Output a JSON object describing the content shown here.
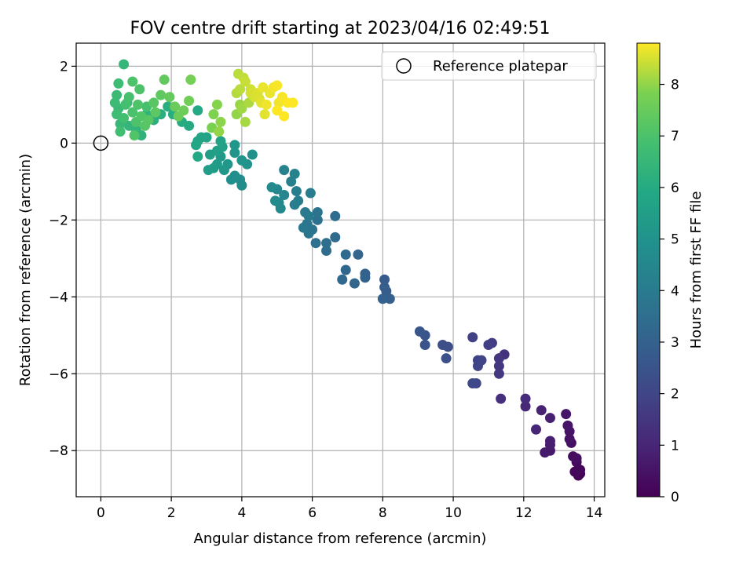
{
  "chart_data": {
    "type": "scatter",
    "title": "FOV centre drift starting at 2023/04/16 02:49:51",
    "xlabel": "Angular distance from reference (arcmin)",
    "ylabel": "Rotation from reference (arcmin)",
    "xlim": [
      -0.7,
      14.3
    ],
    "ylim": [
      -9.2,
      2.6
    ],
    "xticks": [
      0,
      2,
      4,
      6,
      8,
      10,
      12,
      14
    ],
    "yticks": [
      2,
      0,
      -2,
      -4,
      -6,
      -8
    ],
    "grid": true,
    "legend": {
      "position": "top-right",
      "entries": [
        "Reference platepar"
      ]
    },
    "reference": {
      "x": 0,
      "y": 0,
      "label": "Reference platepar"
    },
    "colorbar": {
      "label": "Hours from first FF file",
      "min": 0,
      "max": 8.8,
      "ticks": [
        0,
        1,
        2,
        3,
        4,
        5,
        6,
        7,
        8
      ],
      "colormap": "viridis"
    },
    "points": [
      {
        "x": 13.6,
        "y": -8.6,
        "h": 0.05
      },
      {
        "x": 13.55,
        "y": -8.65,
        "h": 0.1
      },
      {
        "x": 13.45,
        "y": -8.55,
        "h": 0.15
      },
      {
        "x": 13.6,
        "y": -8.5,
        "h": 0.2
      },
      {
        "x": 13.5,
        "y": -8.3,
        "h": 0.25
      },
      {
        "x": 13.4,
        "y": -8.15,
        "h": 0.3
      },
      {
        "x": 13.5,
        "y": -8.2,
        "h": 0.35
      },
      {
        "x": 13.35,
        "y": -7.8,
        "h": 0.4
      },
      {
        "x": 13.3,
        "y": -7.7,
        "h": 0.45
      },
      {
        "x": 13.3,
        "y": -7.5,
        "h": 0.5
      },
      {
        "x": 13.25,
        "y": -7.35,
        "h": 0.55
      },
      {
        "x": 13.2,
        "y": -7.05,
        "h": 0.6
      },
      {
        "x": 12.75,
        "y": -8.0,
        "h": 0.65
      },
      {
        "x": 12.6,
        "y": -8.05,
        "h": 0.7
      },
      {
        "x": 12.75,
        "y": -7.85,
        "h": 0.75
      },
      {
        "x": 12.75,
        "y": -7.75,
        "h": 0.8
      },
      {
        "x": 12.75,
        "y": -7.15,
        "h": 0.85
      },
      {
        "x": 12.5,
        "y": -6.95,
        "h": 0.9
      },
      {
        "x": 12.35,
        "y": -7.45,
        "h": 1.0
      },
      {
        "x": 12.05,
        "y": -6.85,
        "h": 1.1
      },
      {
        "x": 12.05,
        "y": -6.65,
        "h": 1.2
      },
      {
        "x": 11.35,
        "y": -6.65,
        "h": 1.3
      },
      {
        "x": 11.45,
        "y": -5.5,
        "h": 1.4
      },
      {
        "x": 11.3,
        "y": -5.6,
        "h": 1.5
      },
      {
        "x": 11.3,
        "y": -5.8,
        "h": 1.55
      },
      {
        "x": 11.3,
        "y": -6.0,
        "h": 1.6
      },
      {
        "x": 11.1,
        "y": -5.2,
        "h": 1.7
      },
      {
        "x": 11.0,
        "y": -5.25,
        "h": 1.8
      },
      {
        "x": 10.55,
        "y": -5.05,
        "h": 1.85
      },
      {
        "x": 10.7,
        "y": -5.65,
        "h": 1.9
      },
      {
        "x": 10.8,
        "y": -5.65,
        "h": 1.95
      },
      {
        "x": 10.7,
        "y": -5.8,
        "h": 2.0
      },
      {
        "x": 10.65,
        "y": -6.25,
        "h": 2.05
      },
      {
        "x": 10.55,
        "y": -6.25,
        "h": 2.1
      },
      {
        "x": 9.85,
        "y": -5.3,
        "h": 2.3
      },
      {
        "x": 9.7,
        "y": -5.25,
        "h": 2.35
      },
      {
        "x": 9.8,
        "y": -5.6,
        "h": 2.4
      },
      {
        "x": 9.2,
        "y": -5.25,
        "h": 2.5
      },
      {
        "x": 9.2,
        "y": -5.0,
        "h": 2.55
      },
      {
        "x": 9.05,
        "y": -4.9,
        "h": 2.6
      },
      {
        "x": 8.05,
        "y": -3.55,
        "h": 2.8
      },
      {
        "x": 8.1,
        "y": -3.85,
        "h": 2.85
      },
      {
        "x": 8.05,
        "y": -3.75,
        "h": 2.9
      },
      {
        "x": 8.2,
        "y": -4.05,
        "h": 2.95
      },
      {
        "x": 8.0,
        "y": -4.05,
        "h": 3.0
      },
      {
        "x": 7.5,
        "y": -3.4,
        "h": 3.05
      },
      {
        "x": 7.5,
        "y": -3.5,
        "h": 3.1
      },
      {
        "x": 7.3,
        "y": -2.9,
        "h": 3.15
      },
      {
        "x": 7.2,
        "y": -3.65,
        "h": 3.2
      },
      {
        "x": 6.95,
        "y": -3.3,
        "h": 3.25
      },
      {
        "x": 6.85,
        "y": -3.55,
        "h": 3.3
      },
      {
        "x": 6.95,
        "y": -2.9,
        "h": 3.35
      },
      {
        "x": 6.65,
        "y": -2.45,
        "h": 3.4
      },
      {
        "x": 6.65,
        "y": -1.9,
        "h": 3.45
      },
      {
        "x": 6.4,
        "y": -2.8,
        "h": 3.5
      },
      {
        "x": 6.4,
        "y": -2.6,
        "h": 3.55
      },
      {
        "x": 6.1,
        "y": -2.6,
        "h": 3.6
      },
      {
        "x": 6.15,
        "y": -2.0,
        "h": 3.65
      },
      {
        "x": 6.15,
        "y": -1.8,
        "h": 3.7
      },
      {
        "x": 6.0,
        "y": -2.25,
        "h": 3.75
      },
      {
        "x": 5.9,
        "y": -2.35,
        "h": 3.8
      },
      {
        "x": 5.85,
        "y": -2.1,
        "h": 3.85
      },
      {
        "x": 5.75,
        "y": -2.2,
        "h": 3.9
      },
      {
        "x": 5.8,
        "y": -1.8,
        "h": 3.95
      },
      {
        "x": 5.9,
        "y": -1.9,
        "h": 4.0
      },
      {
        "x": 5.95,
        "y": -1.3,
        "h": 4.05
      },
      {
        "x": 5.6,
        "y": -1.5,
        "h": 4.1
      },
      {
        "x": 5.5,
        "y": -1.6,
        "h": 4.15
      },
      {
        "x": 5.55,
        "y": -1.25,
        "h": 4.2
      },
      {
        "x": 5.4,
        "y": -1.0,
        "h": 4.25
      },
      {
        "x": 5.5,
        "y": -0.8,
        "h": 4.3
      },
      {
        "x": 5.2,
        "y": -0.7,
        "h": 4.35
      },
      {
        "x": 5.2,
        "y": -1.35,
        "h": 4.4
      },
      {
        "x": 5.0,
        "y": -1.2,
        "h": 4.45
      },
      {
        "x": 5.05,
        "y": -1.55,
        "h": 4.5
      },
      {
        "x": 5.1,
        "y": -1.7,
        "h": 4.55
      },
      {
        "x": 4.95,
        "y": -1.5,
        "h": 4.6
      },
      {
        "x": 4.85,
        "y": -1.15,
        "h": 4.65
      },
      {
        "x": 4.0,
        "y": -1.1,
        "h": 4.7
      },
      {
        "x": 3.95,
        "y": -0.95,
        "h": 4.75
      },
      {
        "x": 3.8,
        "y": -0.85,
        "h": 4.8
      },
      {
        "x": 3.7,
        "y": -0.95,
        "h": 4.85
      },
      {
        "x": 4.3,
        "y": -0.3,
        "h": 4.9
      },
      {
        "x": 4.15,
        "y": -0.55,
        "h": 4.95
      },
      {
        "x": 4.0,
        "y": -0.45,
        "h": 5.0
      },
      {
        "x": 3.8,
        "y": -0.25,
        "h": 5.05
      },
      {
        "x": 3.8,
        "y": -0.05,
        "h": 5.1
      },
      {
        "x": 3.6,
        "y": -0.55,
        "h": 5.15
      },
      {
        "x": 3.5,
        "y": -0.7,
        "h": 5.2
      },
      {
        "x": 3.4,
        "y": -0.35,
        "h": 5.25
      },
      {
        "x": 3.3,
        "y": -0.55,
        "h": 5.3
      },
      {
        "x": 3.2,
        "y": -0.65,
        "h": 5.35
      },
      {
        "x": 3.05,
        "y": -0.7,
        "h": 5.4
      },
      {
        "x": 3.1,
        "y": -0.3,
        "h": 5.45
      },
      {
        "x": 3.3,
        "y": -0.2,
        "h": 5.5
      },
      {
        "x": 3.45,
        "y": -0.1,
        "h": 5.55
      },
      {
        "x": 3.4,
        "y": 0.05,
        "h": 5.6
      },
      {
        "x": 3.0,
        "y": 0.15,
        "h": 5.65
      },
      {
        "x": 2.85,
        "y": 0.15,
        "h": 5.7
      },
      {
        "x": 2.75,
        "y": 0.05,
        "h": 5.75
      },
      {
        "x": 2.7,
        "y": -0.05,
        "h": 5.8
      },
      {
        "x": 2.75,
        "y": -0.35,
        "h": 5.85
      },
      {
        "x": 2.75,
        "y": 0.85,
        "h": 5.9
      },
      {
        "x": 2.5,
        "y": 0.45,
        "h": 5.95
      },
      {
        "x": 2.3,
        "y": 0.55,
        "h": 6.0
      },
      {
        "x": 2.05,
        "y": 0.75,
        "h": 6.05
      },
      {
        "x": 1.9,
        "y": 0.95,
        "h": 6.1
      },
      {
        "x": 1.7,
        "y": 0.75,
        "h": 6.15
      },
      {
        "x": 1.5,
        "y": 0.6,
        "h": 6.2
      },
      {
        "x": 1.3,
        "y": 0.75,
        "h": 6.25
      },
      {
        "x": 1.15,
        "y": 0.2,
        "h": 6.3
      },
      {
        "x": 1.0,
        "y": 0.35,
        "h": 6.35
      },
      {
        "x": 0.8,
        "y": 0.45,
        "h": 6.4
      },
      {
        "x": 0.65,
        "y": 2.05,
        "h": 6.45
      },
      {
        "x": 0.55,
        "y": 0.5,
        "h": 6.5
      },
      {
        "x": 0.5,
        "y": 0.9,
        "h": 6.55
      },
      {
        "x": 0.45,
        "y": 1.25,
        "h": 6.6
      },
      {
        "x": 0.4,
        "y": 1.05,
        "h": 6.65
      },
      {
        "x": 0.45,
        "y": 0.75,
        "h": 6.7
      },
      {
        "x": 0.55,
        "y": 0.3,
        "h": 6.75
      },
      {
        "x": 0.65,
        "y": 0.65,
        "h": 6.8
      },
      {
        "x": 0.7,
        "y": 1.0,
        "h": 6.85
      },
      {
        "x": 0.8,
        "y": 1.2,
        "h": 6.9
      },
      {
        "x": 0.9,
        "y": 0.8,
        "h": 6.95
      },
      {
        "x": 1.0,
        "y": 0.55,
        "h": 7.0
      },
      {
        "x": 1.05,
        "y": 1.0,
        "h": 7.05
      },
      {
        "x": 1.15,
        "y": 0.7,
        "h": 7.1
      },
      {
        "x": 1.25,
        "y": 0.45,
        "h": 7.15
      },
      {
        "x": 1.35,
        "y": 0.6,
        "h": 7.2
      },
      {
        "x": 1.5,
        "y": 1.05,
        "h": 7.25
      },
      {
        "x": 1.55,
        "y": 0.8,
        "h": 7.3
      },
      {
        "x": 1.7,
        "y": 1.25,
        "h": 7.35
      },
      {
        "x": 1.8,
        "y": 1.65,
        "h": 7.4
      },
      {
        "x": 1.95,
        "y": 1.2,
        "h": 7.45
      },
      {
        "x": 2.1,
        "y": 0.95,
        "h": 7.5
      },
      {
        "x": 2.2,
        "y": 0.7,
        "h": 7.55
      },
      {
        "x": 2.35,
        "y": 0.85,
        "h": 7.6
      },
      {
        "x": 2.5,
        "y": 1.1,
        "h": 7.65
      },
      {
        "x": 2.55,
        "y": 1.65,
        "h": 7.7
      },
      {
        "x": 0.9,
        "y": 1.6,
        "h": 7.0
      },
      {
        "x": 0.95,
        "y": 0.2,
        "h": 7.1
      },
      {
        "x": 0.5,
        "y": 1.55,
        "h": 6.7
      },
      {
        "x": 1.1,
        "y": 1.4,
        "h": 7.0
      },
      {
        "x": 1.3,
        "y": 0.95,
        "h": 6.9
      },
      {
        "x": 0.75,
        "y": 1.05,
        "h": 6.6
      },
      {
        "x": 3.15,
        "y": 0.4,
        "h": 7.8
      },
      {
        "x": 3.2,
        "y": 0.75,
        "h": 7.85
      },
      {
        "x": 3.3,
        "y": 1.0,
        "h": 7.9
      },
      {
        "x": 3.4,
        "y": 0.55,
        "h": 7.95
      },
      {
        "x": 3.35,
        "y": 0.3,
        "h": 8.0
      },
      {
        "x": 3.85,
        "y": 0.75,
        "h": 8.0
      },
      {
        "x": 3.95,
        "y": 1.0,
        "h": 8.05
      },
      {
        "x": 4.0,
        "y": 0.9,
        "h": 8.1
      },
      {
        "x": 4.1,
        "y": 0.55,
        "h": 8.15
      },
      {
        "x": 4.2,
        "y": 1.05,
        "h": 8.2
      },
      {
        "x": 3.85,
        "y": 1.3,
        "h": 8.25
      },
      {
        "x": 3.9,
        "y": 1.8,
        "h": 8.3
      },
      {
        "x": 4.05,
        "y": 1.7,
        "h": 8.35
      },
      {
        "x": 4.1,
        "y": 1.6,
        "h": 8.4
      },
      {
        "x": 4.25,
        "y": 1.4,
        "h": 8.45
      },
      {
        "x": 4.35,
        "y": 1.2,
        "h": 8.5
      },
      {
        "x": 4.45,
        "y": 1.3,
        "h": 8.55
      },
      {
        "x": 4.55,
        "y": 1.05,
        "h": 8.6
      },
      {
        "x": 4.6,
        "y": 1.45,
        "h": 8.65
      },
      {
        "x": 4.65,
        "y": 0.75,
        "h": 8.6
      },
      {
        "x": 4.8,
        "y": 1.3,
        "h": 8.65
      },
      {
        "x": 4.9,
        "y": 1.45,
        "h": 8.7
      },
      {
        "x": 5.0,
        "y": 1.5,
        "h": 8.75
      },
      {
        "x": 5.05,
        "y": 1.05,
        "h": 8.7
      },
      {
        "x": 5.15,
        "y": 1.2,
        "h": 8.75
      },
      {
        "x": 5.0,
        "y": 0.85,
        "h": 8.8
      },
      {
        "x": 5.2,
        "y": 0.7,
        "h": 8.8
      },
      {
        "x": 5.3,
        "y": 1.05,
        "h": 8.8
      },
      {
        "x": 5.45,
        "y": 1.05,
        "h": 8.8
      },
      {
        "x": 4.25,
        "y": 1.3,
        "h": 8.5
      },
      {
        "x": 4.5,
        "y": 1.15,
        "h": 8.55
      },
      {
        "x": 4.7,
        "y": 1.0,
        "h": 8.7
      },
      {
        "x": 3.95,
        "y": 1.4,
        "h": 8.3
      }
    ]
  }
}
